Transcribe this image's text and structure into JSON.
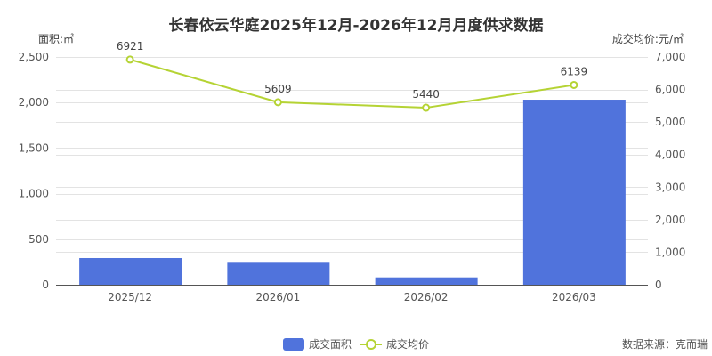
{
  "chart_data": {
    "type": "bar",
    "title": "长春依云华庭2025年12月-2026年12月月度供求数据",
    "categories": [
      "2025/12",
      "2026/01",
      "2026/02",
      "2026/03"
    ],
    "series": [
      {
        "name": "成交面积",
        "type": "bar",
        "axis": "left",
        "color": "#5073DC",
        "values": [
          293,
          251,
          81,
          2031
        ]
      },
      {
        "name": "成交均价",
        "type": "line",
        "axis": "right",
        "color": "#B5D334",
        "values": [
          6921,
          5609,
          5440,
          6139
        ],
        "labels": [
          "6921",
          "5609",
          "5440",
          "6139"
        ]
      }
    ],
    "ylabel": "面积:㎡",
    "y2label": "成交均价:元/㎡",
    "ylim": [
      0,
      2500
    ],
    "y2lim": [
      0,
      7000
    ],
    "yticks": [
      "0",
      "500",
      "1,000",
      "1,500",
      "2,000",
      "2,500"
    ],
    "y2ticks": [
      "0",
      "1,000",
      "2,000",
      "3,000",
      "4,000",
      "5,000",
      "6,000",
      "7,000"
    ],
    "grid": true,
    "legend": "bottom-center"
  },
  "source": "数据来源：克而瑞"
}
